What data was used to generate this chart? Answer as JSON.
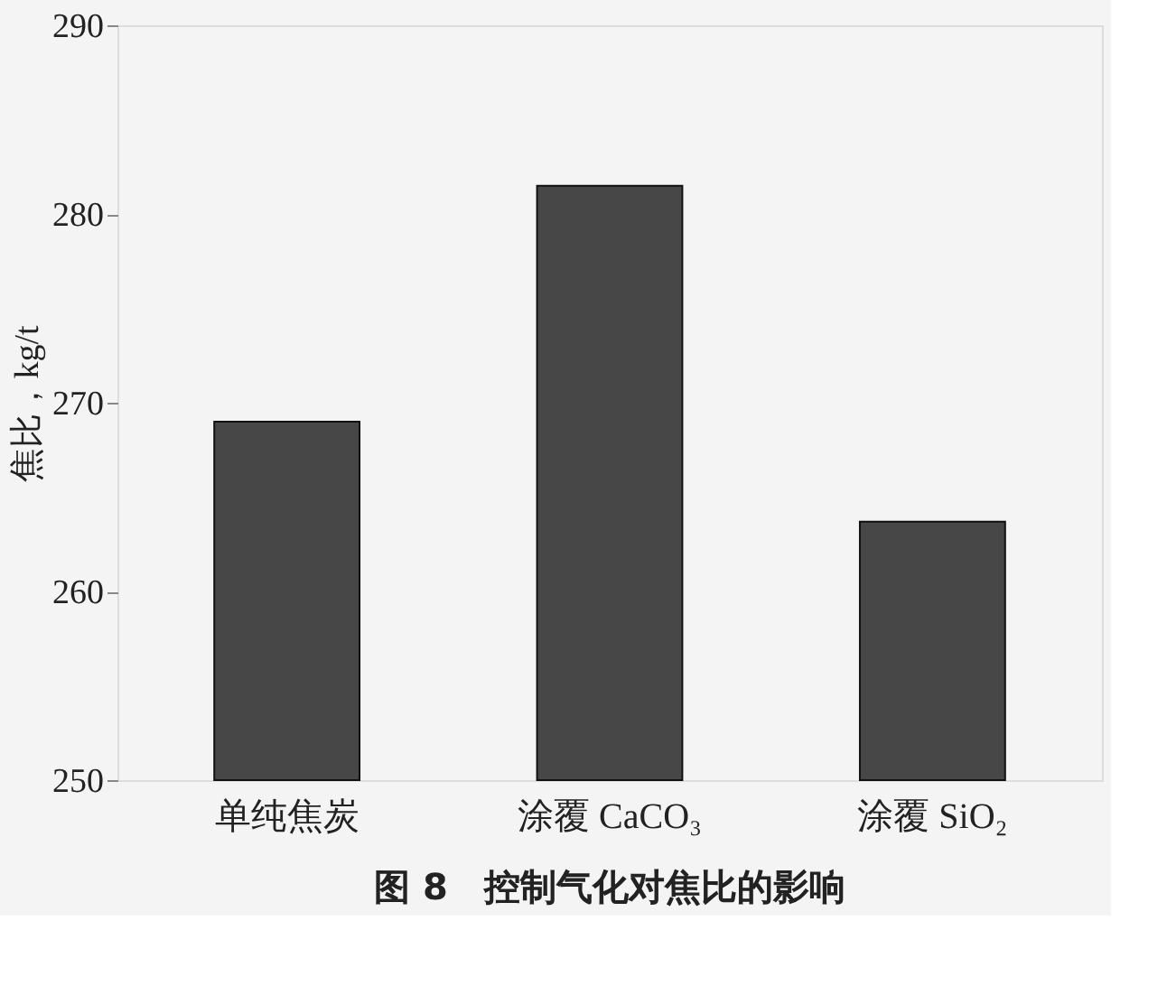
{
  "chart_data": {
    "type": "bar",
    "title": "图 8　控制气化对焦比的影响",
    "ylabel": "焦比，kg/t",
    "categories": [
      "单纯焦炭",
      "涂覆 CaCO₃",
      "涂覆 SiO₂"
    ],
    "values": [
      269.0,
      281.5,
      263.7
    ],
    "color": "#474747",
    "ylim": [
      250,
      290
    ],
    "yticks": [
      250,
      260,
      270,
      280,
      290
    ],
    "grid": false
  }
}
